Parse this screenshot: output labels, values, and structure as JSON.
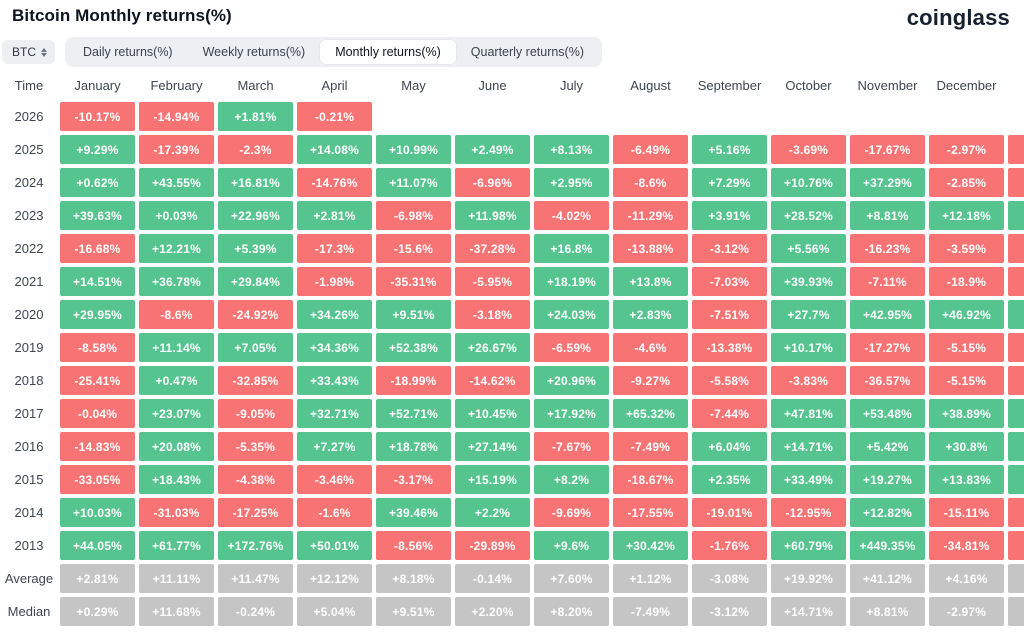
{
  "page": {
    "title": "Bitcoin Monthly returns(%)",
    "brand": "coinglass"
  },
  "controls": {
    "symbol_select": {
      "value": "BTC",
      "icon": "sort-arrows-icon"
    },
    "tabs": [
      {
        "label": "Daily returns(%)",
        "active": false
      },
      {
        "label": "Weekly returns(%)",
        "active": false
      },
      {
        "label": "Monthly returns(%)",
        "active": true
      },
      {
        "label": "Quarterly returns(%)",
        "active": false
      }
    ]
  },
  "colors": {
    "positive": "#55c48f",
    "negative": "#f87373",
    "summary": "#c5c5c5",
    "tab_bar_bg": "#edeff2",
    "active_tab_bg": "#ffffff"
  },
  "table": {
    "columns": [
      "Time",
      "January",
      "February",
      "March",
      "April",
      "May",
      "June",
      "July",
      "August",
      "September",
      "October",
      "November",
      "December"
    ],
    "rows": [
      {
        "label": "2026",
        "type": "year",
        "values": [
          "-10.17%",
          "-14.94%",
          "+1.81%",
          "-0.21%",
          "",
          "",
          "",
          "",
          "",
          "",
          "",
          ""
        ]
      },
      {
        "label": "2025",
        "type": "year",
        "values": [
          "+9.29%",
          "-17.39%",
          "-2.3%",
          "+14.08%",
          "+10.99%",
          "+2.49%",
          "+8.13%",
          "-6.49%",
          "+5.16%",
          "-3.69%",
          "-17.67%",
          "-2.97%"
        ]
      },
      {
        "label": "2024",
        "type": "year",
        "values": [
          "+0.62%",
          "+43.55%",
          "+16.81%",
          "-14.76%",
          "+11.07%",
          "-6.96%",
          "+2.95%",
          "-8.6%",
          "+7.29%",
          "+10.76%",
          "+37.29%",
          "-2.85%"
        ]
      },
      {
        "label": "2023",
        "type": "year",
        "values": [
          "+39.63%",
          "+0.03%",
          "+22.96%",
          "+2.81%",
          "-6.98%",
          "+11.98%",
          "-4.02%",
          "-11.29%",
          "+3.91%",
          "+28.52%",
          "+8.81%",
          "+12.18%"
        ]
      },
      {
        "label": "2022",
        "type": "year",
        "values": [
          "-16.68%",
          "+12.21%",
          "+5.39%",
          "-17.3%",
          "-15.6%",
          "-37.28%",
          "+16.8%",
          "-13.88%",
          "-3.12%",
          "+5.56%",
          "-16.23%",
          "-3.59%"
        ]
      },
      {
        "label": "2021",
        "type": "year",
        "values": [
          "+14.51%",
          "+36.78%",
          "+29.84%",
          "-1.98%",
          "-35.31%",
          "-5.95%",
          "+18.19%",
          "+13.8%",
          "-7.03%",
          "+39.93%",
          "-7.11%",
          "-18.9%"
        ]
      },
      {
        "label": "2020",
        "type": "year",
        "values": [
          "+29.95%",
          "-8.6%",
          "-24.92%",
          "+34.26%",
          "+9.51%",
          "-3.18%",
          "+24.03%",
          "+2.83%",
          "-7.51%",
          "+27.7%",
          "+42.95%",
          "+46.92%"
        ]
      },
      {
        "label": "2019",
        "type": "year",
        "values": [
          "-8.58%",
          "+11.14%",
          "+7.05%",
          "+34.36%",
          "+52.38%",
          "+26.67%",
          "-6.59%",
          "-4.6%",
          "-13.38%",
          "+10.17%",
          "-17.27%",
          "-5.15%"
        ]
      },
      {
        "label": "2018",
        "type": "year",
        "values": [
          "-25.41%",
          "+0.47%",
          "-32.85%",
          "+33.43%",
          "-18.99%",
          "-14.62%",
          "+20.96%",
          "-9.27%",
          "-5.58%",
          "-3.83%",
          "-36.57%",
          "-5.15%"
        ]
      },
      {
        "label": "2017",
        "type": "year",
        "values": [
          "-0.04%",
          "+23.07%",
          "-9.05%",
          "+32.71%",
          "+52.71%",
          "+10.45%",
          "+17.92%",
          "+65.32%",
          "-7.44%",
          "+47.81%",
          "+53.48%",
          "+38.89%"
        ]
      },
      {
        "label": "2016",
        "type": "year",
        "values": [
          "-14.83%",
          "+20.08%",
          "-5.35%",
          "+7.27%",
          "+18.78%",
          "+27.14%",
          "-7.67%",
          "-7.49%",
          "+6.04%",
          "+14.71%",
          "+5.42%",
          "+30.8%"
        ]
      },
      {
        "label": "2015",
        "type": "year",
        "values": [
          "-33.05%",
          "+18.43%",
          "-4.38%",
          "-3.46%",
          "-3.17%",
          "+15.19%",
          "+8.2%",
          "-18.67%",
          "+2.35%",
          "+33.49%",
          "+19.27%",
          "+13.83%"
        ]
      },
      {
        "label": "2014",
        "type": "year",
        "values": [
          "+10.03%",
          "-31.03%",
          "-17.25%",
          "-1.6%",
          "+39.46%",
          "+2.2%",
          "-9.69%",
          "-17.55%",
          "-19.01%",
          "-12.95%",
          "+12.82%",
          "-15.11%"
        ]
      },
      {
        "label": "2013",
        "type": "year",
        "values": [
          "+44.05%",
          "+61.77%",
          "+172.76%",
          "+50.01%",
          "-8.56%",
          "-29.89%",
          "+9.6%",
          "+30.42%",
          "-1.76%",
          "+60.79%",
          "+449.35%",
          "-34.81%"
        ]
      },
      {
        "label": "Average",
        "type": "summary",
        "values": [
          "+2.81%",
          "+11.11%",
          "+11.47%",
          "+12.12%",
          "+8.18%",
          "-0.14%",
          "+7.60%",
          "+1.12%",
          "-3.08%",
          "+19.92%",
          "+41.12%",
          "+4.16%"
        ]
      },
      {
        "label": "Median",
        "type": "summary",
        "values": [
          "+0.29%",
          "+11.68%",
          "-0.24%",
          "+5.04%",
          "+9.51%",
          "+2.20%",
          "+8.20%",
          "-7.49%",
          "-3.12%",
          "+14.71%",
          "+8.81%",
          "-2.97%"
        ]
      }
    ]
  }
}
